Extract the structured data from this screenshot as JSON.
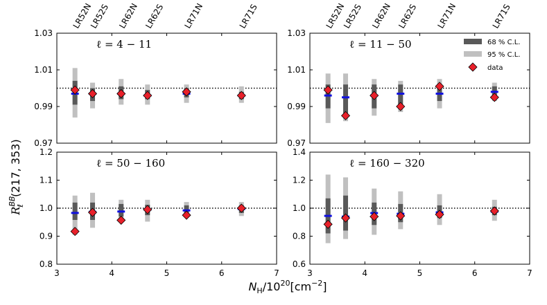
{
  "chart_data": {
    "type": "scatter",
    "xlabel": "N_H/10^20[cm^-2]",
    "ylabel": "R_l^BB(217, 353)",
    "xlim": [
      3,
      7
    ],
    "x_ticks": [
      "3",
      "4",
      "5",
      "6",
      "7"
    ],
    "x_tick_values": [
      3,
      4,
      5,
      6,
      7
    ],
    "regions": [
      {
        "name": "LR52N",
        "x": 3.33
      },
      {
        "name": "LR52S",
        "x": 3.65
      },
      {
        "name": "LR62N",
        "x": 4.17
      },
      {
        "name": "LR62S",
        "x": 4.65
      },
      {
        "name": "LR71N",
        "x": 5.36
      },
      {
        "name": "LR71S",
        "x": 6.36
      }
    ],
    "legend": {
      "position": "top-right",
      "items": [
        "68 % C.L.",
        "95 % C.L.",
        "data"
      ],
      "colors": {
        "cl68": "#595959",
        "cl95": "#c0c0c0",
        "data": "#e8202a",
        "mean": "#1010e0"
      }
    },
    "reference_line": 1.0,
    "panels": [
      {
        "label": "ℓ = 4 − 11",
        "ylim": [
          0.97,
          1.03
        ],
        "y_ticks": [
          "0.97",
          "0.99",
          "1.01",
          "1.03"
        ],
        "y_tick_values": [
          0.97,
          0.99,
          1.01,
          1.03
        ],
        "mean": [
          0.997,
          0.997,
          0.997,
          0.996,
          0.997,
          0.996
        ],
        "cl68": [
          [
            0.991,
            1.004
          ],
          [
            0.993,
            1.0
          ],
          [
            0.994,
            1.001
          ],
          [
            0.994,
            0.999
          ],
          [
            0.995,
            1.0
          ],
          [
            0.994,
            0.998
          ]
        ],
        "cl95": [
          [
            0.984,
            1.011
          ],
          [
            0.989,
            1.003
          ],
          [
            0.991,
            1.005
          ],
          [
            0.991,
            1.002
          ],
          [
            0.992,
            1.002
          ],
          [
            0.992,
            1.001
          ]
        ],
        "data": [
          0.999,
          0.997,
          0.997,
          0.996,
          0.998,
          0.996
        ]
      },
      {
        "label": "ℓ = 11 − 50",
        "ylim": [
          0.97,
          1.03
        ],
        "y_ticks": [
          "0.97",
          "0.99",
          "1.01",
          "1.03"
        ],
        "y_tick_values": [
          0.97,
          0.99,
          1.01,
          1.03
        ],
        "mean": [
          0.996,
          0.995,
          0.996,
          0.997,
          0.997,
          0.998
        ],
        "cl68": [
          [
            0.989,
            1.002
          ],
          [
            0.985,
            1.002
          ],
          [
            0.989,
            1.002
          ],
          [
            0.991,
            1.002
          ],
          [
            0.993,
            1.002
          ],
          [
            0.995,
            1.001
          ]
        ],
        "cl95": [
          [
            0.981,
            1.008
          ],
          [
            0.982,
            1.008
          ],
          [
            0.985,
            1.005
          ],
          [
            0.987,
            1.004
          ],
          [
            0.989,
            1.005
          ],
          [
            0.993,
            1.003
          ]
        ],
        "data": [
          0.999,
          0.985,
          0.996,
          0.99,
          1.001,
          0.995
        ]
      },
      {
        "label": "ℓ = 50 − 160",
        "ylim": [
          0.8,
          1.2
        ],
        "y_ticks": [
          "0.8",
          "0.9",
          "1.0",
          "1.1",
          "1.2"
        ],
        "y_tick_values": [
          0.8,
          0.9,
          1.0,
          1.1,
          1.2
        ],
        "mean": [
          0.983,
          0.987,
          0.988,
          0.995,
          0.992,
          0.997
        ],
        "cl68": [
          [
            0.958,
            1.02
          ],
          [
            0.958,
            1.02
          ],
          [
            0.97,
            1.015
          ],
          [
            0.975,
            1.012
          ],
          [
            0.982,
            1.01
          ],
          [
            0.983,
            1.01
          ]
        ],
        "cl95": [
          [
            0.905,
            1.045
          ],
          [
            0.93,
            1.055
          ],
          [
            0.953,
            1.03
          ],
          [
            0.952,
            1.03
          ],
          [
            0.97,
            1.022
          ],
          [
            0.972,
            1.022
          ]
        ],
        "data": [
          0.917,
          0.985,
          0.957,
          0.995,
          0.975,
          1.0
        ]
      },
      {
        "label": "ℓ = 160 − 320",
        "ylim": [
          0.6,
          1.4
        ],
        "y_ticks": [
          "0.6",
          "0.8",
          "1.0",
          "1.2",
          "1.4"
        ],
        "y_tick_values": [
          0.6,
          0.8,
          1.0,
          1.2,
          1.4
        ],
        "mean": [
          0.945,
          0.94,
          0.965,
          0.96,
          0.97,
          0.975
        ],
        "cl68": [
          [
            0.82,
            1.07
          ],
          [
            0.84,
            1.09
          ],
          [
            0.88,
            1.04
          ],
          [
            0.9,
            1.03
          ],
          [
            0.93,
            1.02
          ],
          [
            0.95,
            1.01
          ]
        ],
        "cl95": [
          [
            0.75,
            1.24
          ],
          [
            0.78,
            1.22
          ],
          [
            0.81,
            1.14
          ],
          [
            0.85,
            1.12
          ],
          [
            0.88,
            1.1
          ],
          [
            0.91,
            1.06
          ]
        ],
        "data": [
          0.885,
          0.93,
          0.94,
          0.945,
          0.955,
          0.98
        ]
      }
    ]
  }
}
